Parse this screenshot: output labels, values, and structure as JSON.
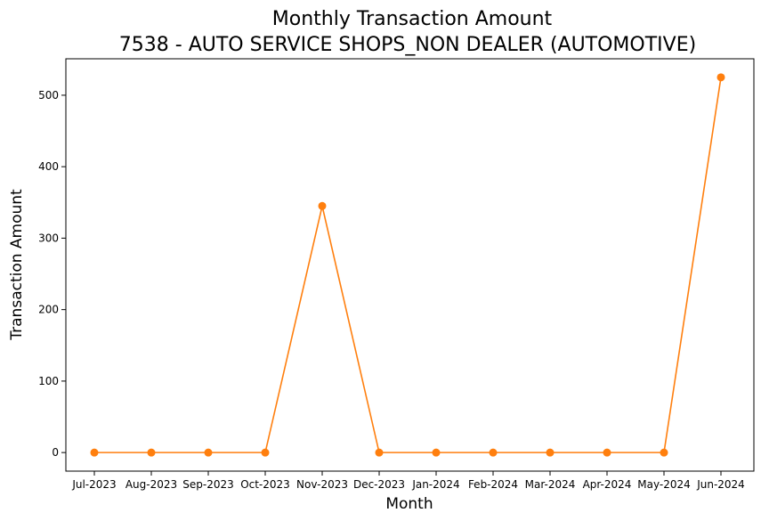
{
  "chart_data": {
    "type": "line",
    "title_line1": "Monthly Transaction Amount",
    "title_line2": "7538 - AUTO SERVICE SHOPS_NON DEALER (AUTOMOTIVE)",
    "xlabel": "Month",
    "ylabel": "Transaction Amount",
    "categories": [
      "Jul-2023",
      "Aug-2023",
      "Sep-2023",
      "Oct-2023",
      "Nov-2023",
      "Dec-2023",
      "Jan-2024",
      "Feb-2024",
      "Mar-2024",
      "Apr-2024",
      "May-2024",
      "Jun-2024"
    ],
    "series": [
      {
        "values": [
          0,
          0,
          0,
          0,
          345,
          0,
          0,
          0,
          0,
          0,
          0,
          525
        ],
        "color": "#ff7f0e"
      }
    ],
    "ylim": [
      -26,
      551
    ],
    "yticks": [
      0,
      100,
      200,
      300,
      400,
      500
    ],
    "grid": false,
    "legend": "none"
  }
}
